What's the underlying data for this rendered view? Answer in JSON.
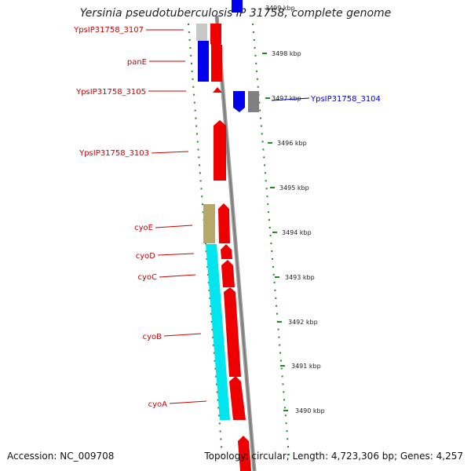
{
  "title": "Yersinia pseudotuberculosis IP 31758, complete genome",
  "footer": {
    "accession": "Accession: NC_009708",
    "summary": "Topology: circular; Length: 4,723,306 bp; Genes: 4,257"
  },
  "scale": {
    "top_partial_label": "3499 kbp",
    "labels": [
      "3498 kbp",
      "3497 kbp",
      "3496 kbp",
      "3495 kbp",
      "3494 kbp",
      "3493 kbp",
      "3492 kbp",
      "3491 kbp",
      "3490 kbp"
    ]
  },
  "gene_labels": {
    "left": [
      "YpsIP31758_3107",
      "panE",
      "YpsIP31758_3105",
      "YpsIP31758_3103",
      "cyoE",
      "cyoD",
      "cyoC",
      "cyoB",
      "cyoA"
    ],
    "right": [
      "YpsIP31758_3104"
    ]
  },
  "colors": {
    "forward_strand": "#ee0000",
    "reverse_strand": "#0000ee",
    "cyoB_block": "#00e5ee",
    "cyoE_block": "#b5a86a",
    "grey_block": "#808080",
    "light_grey_block": "#c8c8c8",
    "tick": "#1e8c1e",
    "backbone": "#999999",
    "label_red": "#cc0000",
    "label_blue": "#0000cc"
  }
}
